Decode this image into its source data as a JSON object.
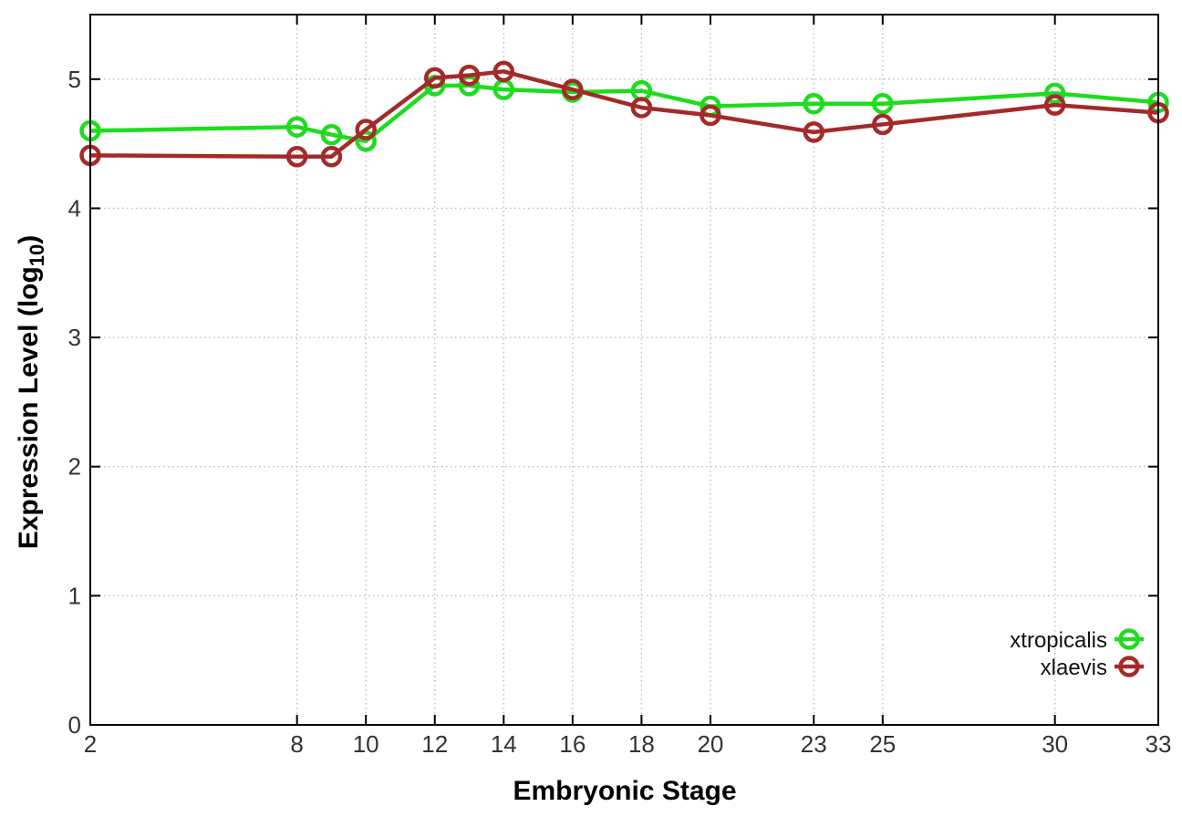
{
  "chart_data": {
    "type": "line",
    "title": "",
    "xlabel": "Embryonic Stage",
    "ylabel": "Expression Level (log10)",
    "ylabel_parts": {
      "prefix": "Expression Level (log",
      "sub": "10",
      "suffix": ")"
    },
    "x": [
      2,
      8,
      9,
      10,
      12,
      13,
      14,
      16,
      18,
      20,
      23,
      25,
      30,
      33
    ],
    "series": [
      {
        "name": "xtropicalis",
        "color": "#1edc1e",
        "values": [
          4.6,
          4.63,
          4.57,
          4.52,
          4.95,
          4.95,
          4.92,
          4.9,
          4.91,
          4.79,
          4.81,
          4.81,
          4.89,
          4.82
        ]
      },
      {
        "name": "xlaevis",
        "color": "#a42a2a",
        "values": [
          4.41,
          4.4,
          4.4,
          4.61,
          5.01,
          5.03,
          5.06,
          4.92,
          4.78,
          4.72,
          4.59,
          4.65,
          4.8,
          4.74
        ]
      }
    ],
    "xticks": [
      2,
      8,
      10,
      12,
      14,
      16,
      18,
      20,
      23,
      25,
      30,
      33
    ],
    "yticks": [
      0,
      1,
      2,
      3,
      4,
      5
    ],
    "xlim": [
      2,
      33
    ],
    "ylim": [
      0,
      5.5
    ],
    "grid": true,
    "legend_position": "inside-bottom-right",
    "marker": "open-circle",
    "axis_color": "#000000",
    "grid_color": "#bdbdbd",
    "background_color": "#ffffff"
  }
}
